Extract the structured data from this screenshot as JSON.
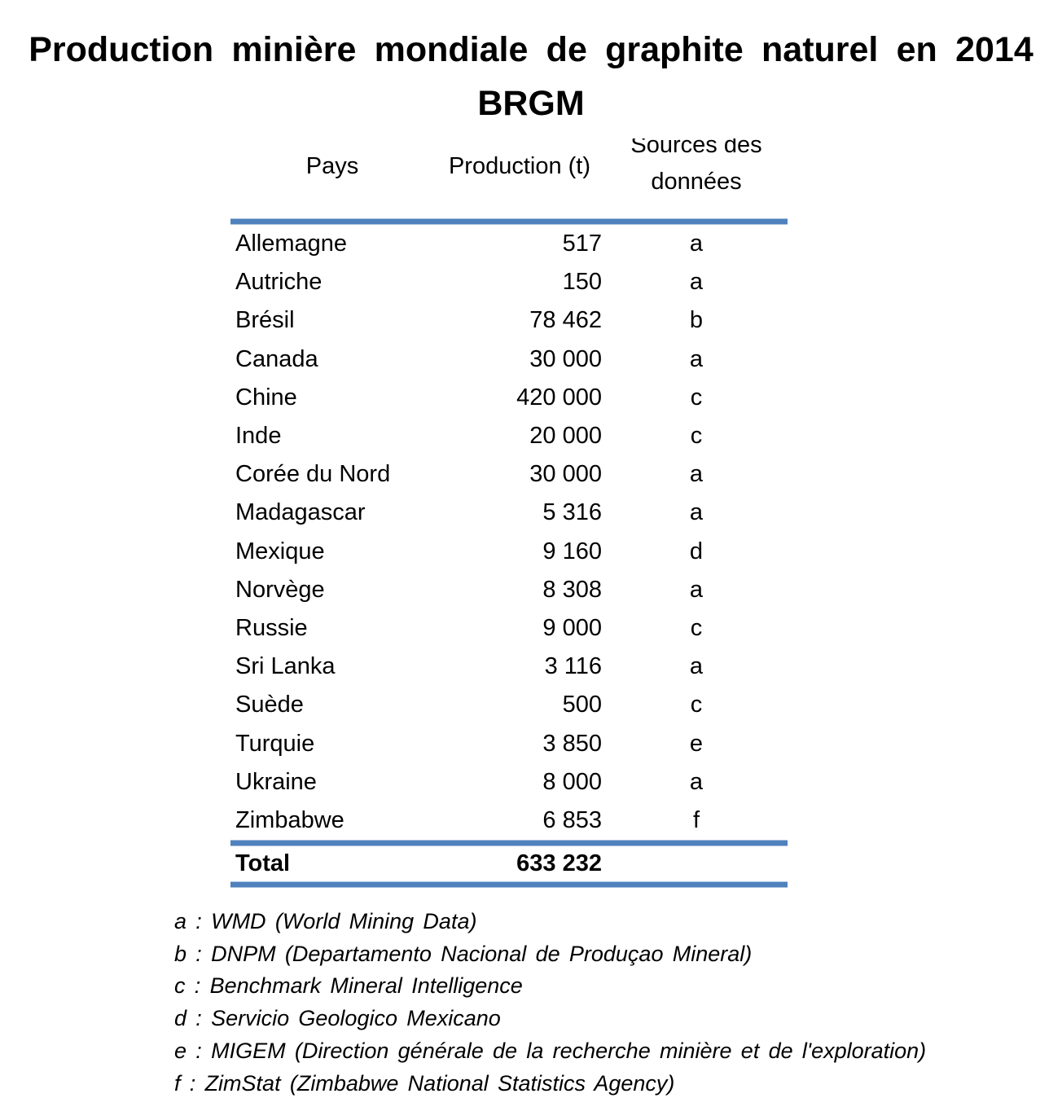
{
  "title": {
    "line1": "Production minière mondiale de graphite naturel en 2014",
    "line2": "BRGM"
  },
  "table": {
    "headers": {
      "pays": "Pays",
      "production": "Production (t)",
      "sources_line1": "Sources des",
      "sources_line2": "données"
    },
    "rows": [
      {
        "pays": "Allemagne",
        "production": "517",
        "source": "a"
      },
      {
        "pays": "Autriche",
        "production": "150",
        "source": "a"
      },
      {
        "pays": "Brésil",
        "production": "78 462",
        "source": "b"
      },
      {
        "pays": "Canada",
        "production": "30 000",
        "source": "a"
      },
      {
        "pays": "Chine",
        "production": "420 000",
        "source": "c"
      },
      {
        "pays": "Inde",
        "production": "20 000",
        "source": "c"
      },
      {
        "pays": "Corée du Nord",
        "production": "30 000",
        "source": "a"
      },
      {
        "pays": "Madagascar",
        "production": "5 316",
        "source": "a"
      },
      {
        "pays": "Mexique",
        "production": "9 160",
        "source": "d"
      },
      {
        "pays": "Norvège",
        "production": "8 308",
        "source": "a"
      },
      {
        "pays": "Russie",
        "production": "9 000",
        "source": "c"
      },
      {
        "pays": "Sri Lanka",
        "production": "3 116",
        "source": "a"
      },
      {
        "pays": "Suède",
        "production": "500",
        "source": "c"
      },
      {
        "pays": "Turquie",
        "production": "3 850",
        "source": "e"
      },
      {
        "pays": "Ukraine",
        "production": "8 000",
        "source": "a"
      },
      {
        "pays": "Zimbabwe",
        "production": "6 853",
        "source": "f"
      }
    ],
    "total": {
      "label": "Total",
      "production": "633 232",
      "source": ""
    }
  },
  "footnotes": [
    "a : WMD (World Mining Data)",
    "b : DNPM (Departamento Nacional de Produçao Mineral)",
    "c : Benchmark Mineral Intelligence",
    "d : Servicio Geologico Mexicano",
    "e : MIGEM (Direction générale de la recherche minière et de l'exploration)",
    "f : ZimStat (Zimbabwe National Statistics Agency)"
  ],
  "colors": {
    "accent_line": "#4f81bd",
    "text": "#000000"
  }
}
